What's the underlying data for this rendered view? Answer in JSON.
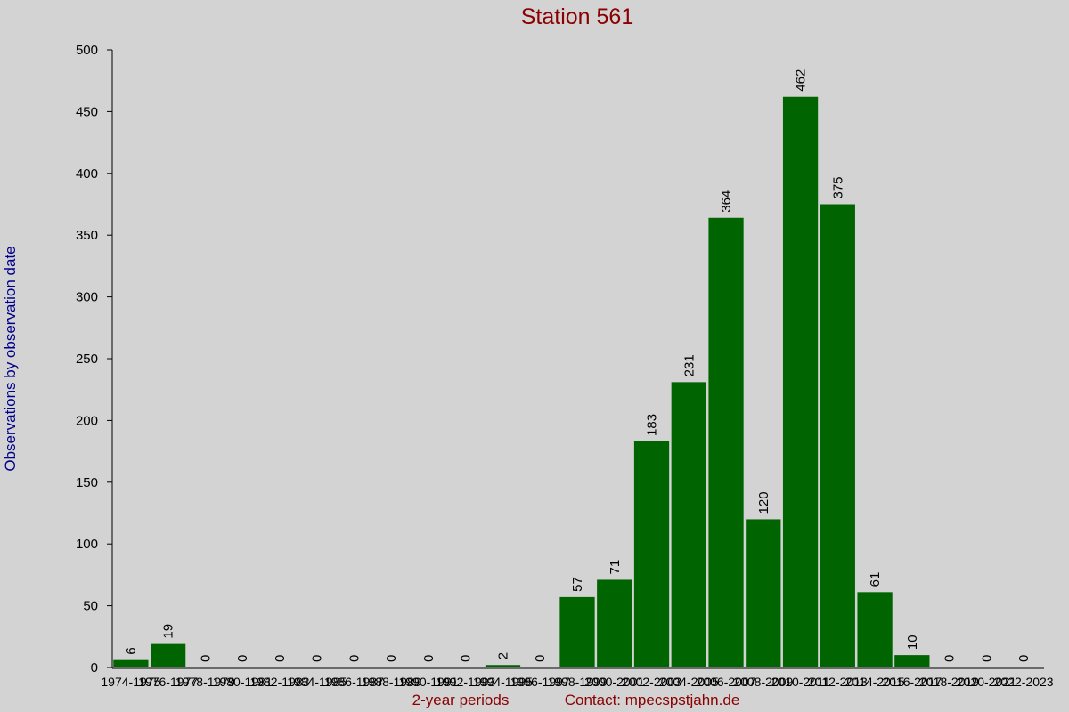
{
  "chart_data": {
    "type": "bar",
    "title": "Station 561",
    "x_label": "2-year periods",
    "note": "Contact: mpecspstjahn.de",
    "y_label": "Observations by observation date",
    "categories": [
      "1974-1975",
      "1976-1977",
      "1978-1979",
      "1980-1981",
      "1982-1983",
      "1984-1985",
      "1986-1987",
      "1988-1989",
      "1990-1991",
      "1992-1993",
      "1994-1995",
      "1996-1997",
      "1998-1999",
      "2000-2001",
      "2002-2003",
      "2004-2005",
      "2006-2007",
      "2008-2009",
      "2010-2011",
      "2012-2013",
      "2014-2015",
      "2016-2017",
      "2018-2019",
      "2020-2021",
      "2022-2023"
    ],
    "values": [
      6,
      19,
      0,
      0,
      0,
      0,
      0,
      0,
      0,
      0,
      2,
      0,
      57,
      71,
      183,
      231,
      364,
      120,
      462,
      375,
      61,
      10,
      0,
      0,
      0
    ],
    "color": "#006400",
    "ylim": [
      0,
      500
    ],
    "yticks": [
      0,
      50,
      100,
      150,
      200,
      250,
      300,
      350,
      400,
      450,
      500
    ],
    "grid": false
  }
}
